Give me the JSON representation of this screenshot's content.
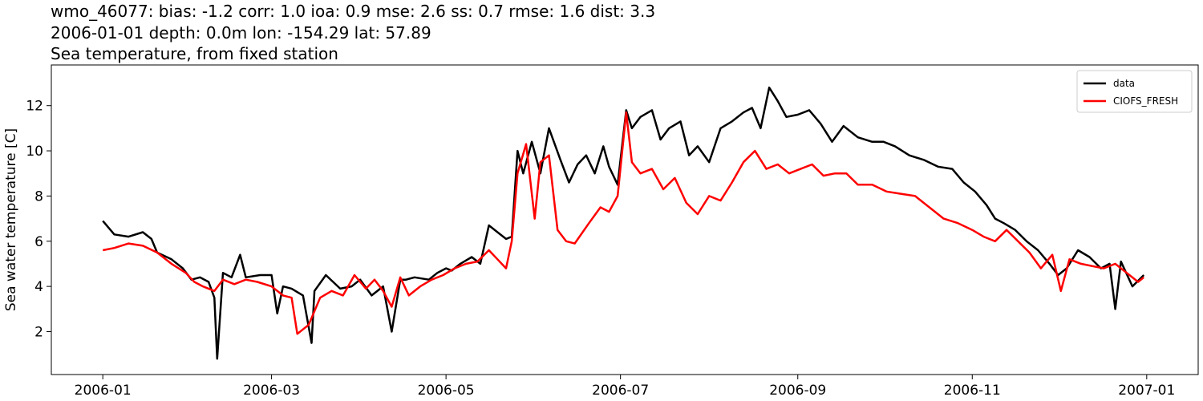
{
  "header": {
    "stats_line": "wmo_46077: bias: -1.2  corr: 1.0  ioa: 0.9  mse: 2.6  ss: 0.7  rmse: 1.6  dist: 3.3",
    "meta_line": "2006-01-01 depth: 0.0m lon: -154.29 lat: 57.89",
    "subtitle": "Sea temperature, from fixed station"
  },
  "chart_data": {
    "type": "line",
    "title": "wmo_46077: bias: -1.2  corr: 1.0  ioa: 0.9  mse: 2.6  ss: 0.7  rmse: 1.6  dist: 3.3",
    "xlabel": "",
    "ylabel": "Sea water temperature [C]",
    "xlim": [
      "2005-12-14",
      "2007-01-19"
    ],
    "ylim": [
      0.1,
      13.8
    ],
    "x_ticks": [
      "2006-01",
      "2006-03",
      "2006-05",
      "2006-07",
      "2006-09",
      "2006-11",
      "2007-01"
    ],
    "x_tick_dates": [
      "2006-01-01",
      "2006-03-01",
      "2006-05-01",
      "2006-07-01",
      "2006-09-01",
      "2006-11-01",
      "2007-01-01"
    ],
    "y_ticks": [
      2,
      4,
      6,
      8,
      10,
      12
    ],
    "legend_position": "top-right",
    "grid": false,
    "series": [
      {
        "name": "data",
        "color": "#000000",
        "x": [
          "2006-01-01",
          "2006-01-05",
          "2006-01-10",
          "2006-01-15",
          "2006-01-18",
          "2006-01-20",
          "2006-01-25",
          "2006-01-29",
          "2006-02-01",
          "2006-02-04",
          "2006-02-07",
          "2006-02-09",
          "2006-02-10",
          "2006-02-12",
          "2006-02-15",
          "2006-02-18",
          "2006-02-20",
          "2006-02-25",
          "2006-03-01",
          "2006-03-03",
          "2006-03-05",
          "2006-03-08",
          "2006-03-12",
          "2006-03-15",
          "2006-03-16",
          "2006-03-20",
          "2006-03-25",
          "2006-03-29",
          "2006-04-01",
          "2006-04-05",
          "2006-04-09",
          "2006-04-12",
          "2006-04-15",
          "2006-04-17",
          "2006-04-20",
          "2006-04-25",
          "2006-04-28",
          "2006-05-01",
          "2006-05-03",
          "2006-05-06",
          "2006-05-10",
          "2006-05-13",
          "2006-05-16",
          "2006-05-19",
          "2006-05-22",
          "2006-05-24",
          "2006-05-26",
          "2006-05-28",
          "2006-05-31",
          "2006-06-03",
          "2006-06-06",
          "2006-06-10",
          "2006-06-13",
          "2006-06-16",
          "2006-06-19",
          "2006-06-22",
          "2006-06-25",
          "2006-06-27",
          "2006-06-30",
          "2006-07-03",
          "2006-07-05",
          "2006-07-08",
          "2006-07-12",
          "2006-07-15",
          "2006-07-18",
          "2006-07-22",
          "2006-07-25",
          "2006-07-28",
          "2006-08-01",
          "2006-08-05",
          "2006-08-09",
          "2006-08-13",
          "2006-08-16",
          "2006-08-19",
          "2006-08-22",
          "2006-08-25",
          "2006-08-28",
          "2006-09-01",
          "2006-09-05",
          "2006-09-09",
          "2006-09-13",
          "2006-09-17",
          "2006-09-22",
          "2006-09-27",
          "2006-10-01",
          "2006-10-05",
          "2006-10-10",
          "2006-10-15",
          "2006-10-20",
          "2006-10-25",
          "2006-10-29",
          "2006-11-02",
          "2006-11-06",
          "2006-11-09",
          "2006-11-12",
          "2006-11-16",
          "2006-11-20",
          "2006-11-24",
          "2006-11-28",
          "2006-12-01",
          "2006-12-04",
          "2006-12-08",
          "2006-12-12",
          "2006-12-16",
          "2006-12-19",
          "2006-12-21",
          "2006-12-23",
          "2006-12-27",
          "2006-12-31"
        ],
        "y": [
          6.9,
          6.3,
          6.2,
          6.4,
          6.1,
          5.5,
          5.2,
          4.8,
          4.3,
          4.4,
          4.2,
          3.5,
          0.8,
          4.6,
          4.4,
          5.4,
          4.4,
          4.5,
          4.5,
          2.8,
          4.0,
          3.9,
          3.6,
          1.5,
          3.8,
          4.5,
          3.9,
          4.0,
          4.3,
          3.6,
          4.0,
          2.0,
          4.3,
          4.3,
          4.4,
          4.3,
          4.6,
          4.8,
          4.7,
          5.0,
          5.3,
          5.0,
          6.7,
          6.4,
          6.1,
          6.2,
          10.0,
          9.0,
          10.4,
          9.0,
          11.0,
          9.6,
          8.6,
          9.4,
          9.8,
          9.0,
          10.2,
          9.3,
          8.5,
          11.8,
          11.0,
          11.5,
          11.8,
          10.5,
          11.0,
          11.3,
          9.8,
          10.2,
          9.5,
          11.0,
          11.3,
          11.7,
          11.9,
          11.0,
          12.8,
          12.2,
          11.5,
          11.6,
          11.8,
          11.2,
          10.4,
          11.1,
          10.6,
          10.4,
          10.4,
          10.2,
          9.8,
          9.6,
          9.3,
          9.2,
          8.6,
          8.2,
          7.6,
          7.0,
          6.8,
          6.5,
          6.0,
          5.6,
          5.0,
          4.5,
          4.8,
          5.6,
          5.3,
          4.8,
          5.0,
          3.0,
          5.1,
          4.0,
          4.5
        ]
      },
      {
        "name": "CIOFS_FRESH",
        "color": "#ff0000",
        "x": [
          "2006-01-01",
          "2006-01-05",
          "2006-01-10",
          "2006-01-15",
          "2006-01-20",
          "2006-01-25",
          "2006-01-30",
          "2006-02-02",
          "2006-02-05",
          "2006-02-09",
          "2006-02-12",
          "2006-02-16",
          "2006-02-20",
          "2006-02-24",
          "2006-03-01",
          "2006-03-05",
          "2006-03-08",
          "2006-03-10",
          "2006-03-14",
          "2006-03-18",
          "2006-03-22",
          "2006-03-26",
          "2006-03-30",
          "2006-04-03",
          "2006-04-06",
          "2006-04-09",
          "2006-04-12",
          "2006-04-15",
          "2006-04-18",
          "2006-04-22",
          "2006-04-26",
          "2006-04-30",
          "2006-05-04",
          "2006-05-08",
          "2006-05-12",
          "2006-05-16",
          "2006-05-19",
          "2006-05-22",
          "2006-05-24",
          "2006-05-26",
          "2006-05-29",
          "2006-06-01",
          "2006-06-03",
          "2006-06-06",
          "2006-06-09",
          "2006-06-12",
          "2006-06-15",
          "2006-06-20",
          "2006-06-24",
          "2006-06-27",
          "2006-06-30",
          "2006-07-03",
          "2006-07-05",
          "2006-07-08",
          "2006-07-12",
          "2006-07-16",
          "2006-07-20",
          "2006-07-24",
          "2006-07-28",
          "2006-08-01",
          "2006-08-05",
          "2006-08-09",
          "2006-08-13",
          "2006-08-17",
          "2006-08-21",
          "2006-08-25",
          "2006-08-29",
          "2006-09-02",
          "2006-09-06",
          "2006-09-10",
          "2006-09-14",
          "2006-09-18",
          "2006-09-22",
          "2006-09-27",
          "2006-10-02",
          "2006-10-07",
          "2006-10-12",
          "2006-10-17",
          "2006-10-22",
          "2006-10-27",
          "2006-11-01",
          "2006-11-05",
          "2006-11-09",
          "2006-11-13",
          "2006-11-17",
          "2006-11-21",
          "2006-11-25",
          "2006-11-29",
          "2006-12-02",
          "2006-12-05",
          "2006-12-09",
          "2006-12-13",
          "2006-12-17",
          "2006-12-21",
          "2006-12-25",
          "2006-12-29",
          "2006-12-31"
        ],
        "y": [
          5.6,
          5.7,
          5.9,
          5.8,
          5.5,
          5.0,
          4.6,
          4.2,
          4.0,
          3.8,
          4.3,
          4.1,
          4.3,
          4.2,
          4.0,
          3.6,
          3.5,
          1.9,
          2.3,
          3.5,
          3.8,
          3.6,
          4.5,
          3.9,
          4.3,
          3.8,
          3.1,
          4.4,
          3.6,
          4.0,
          4.3,
          4.5,
          4.8,
          5.0,
          5.1,
          5.6,
          5.2,
          4.8,
          6.0,
          9.0,
          10.3,
          7.0,
          9.5,
          9.8,
          6.5,
          6.0,
          5.9,
          6.8,
          7.5,
          7.3,
          8.0,
          11.7,
          9.5,
          9.0,
          9.2,
          8.3,
          8.8,
          7.7,
          7.2,
          8.0,
          7.8,
          8.6,
          9.5,
          10.0,
          9.2,
          9.4,
          9.0,
          9.2,
          9.4,
          8.9,
          9.0,
          9.0,
          8.5,
          8.5,
          8.2,
          8.1,
          8.0,
          7.5,
          7.0,
          6.8,
          6.5,
          6.2,
          6.0,
          6.5,
          6.0,
          5.5,
          4.8,
          5.4,
          3.8,
          5.2,
          5.0,
          4.9,
          4.8,
          5.0,
          4.6,
          4.2,
          4.4
        ]
      }
    ]
  }
}
